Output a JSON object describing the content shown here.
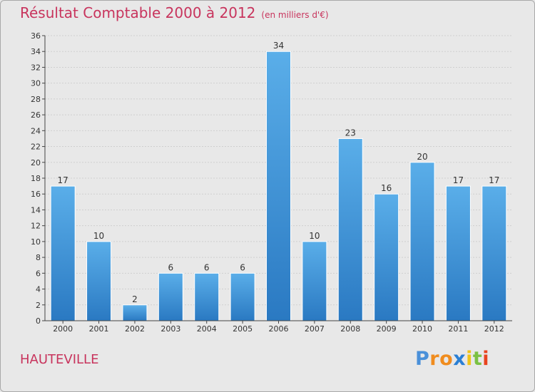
{
  "chart_data": {
    "type": "bar",
    "title": "Résultat Comptable 2000 à 2012",
    "subtitle": "(en milliers d'€)",
    "categories": [
      "2000",
      "2001",
      "2002",
      "2003",
      "2004",
      "2005",
      "2006",
      "2007",
      "2008",
      "2009",
      "2010",
      "2011",
      "2012"
    ],
    "values": [
      17,
      10,
      2,
      6,
      6,
      6,
      34,
      10,
      23,
      16,
      20,
      17,
      17
    ],
    "xlabel": "",
    "ylabel": "",
    "ylim": [
      0,
      36
    ],
    "yticks": [
      0,
      2,
      4,
      6,
      8,
      10,
      12,
      14,
      16,
      18,
      20,
      22,
      24,
      26,
      28,
      30,
      32,
      34,
      36
    ],
    "grid": true,
    "bar_color": "#4a9ede"
  },
  "place_name": "HAUTEVILLE",
  "logo": {
    "letters": [
      "P",
      "r",
      "o",
      "x",
      "i",
      "t",
      "i"
    ],
    "colors": [
      "#4a90d9",
      "#f08c1e",
      "#f08c1e",
      "#2a7fd4",
      "#f0c419",
      "#7bc143",
      "#e8441f"
    ]
  }
}
